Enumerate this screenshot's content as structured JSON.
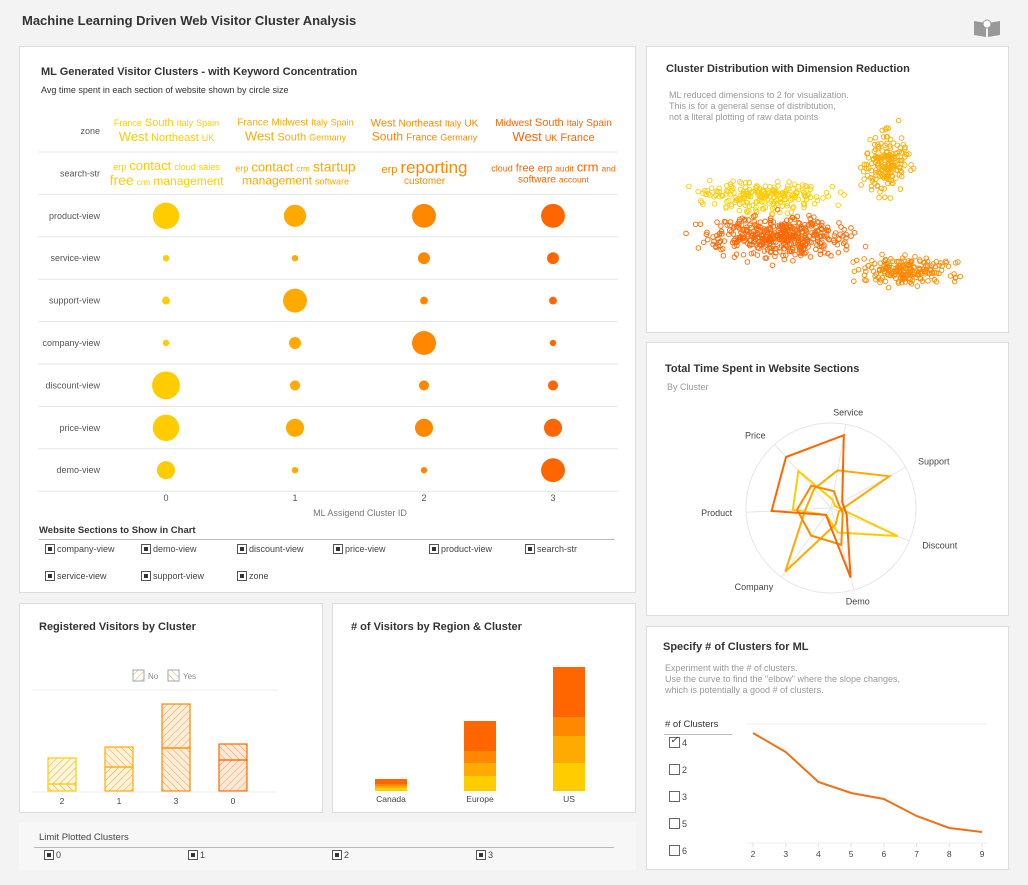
{
  "header": {
    "title": "Machine Learning Driven Web Visitor Cluster Analysis",
    "icon": "book-icon"
  },
  "colors": {
    "cluster_0": "#ffcc00",
    "cluster_1": "#ffaa00",
    "cluster_2": "#ff8800",
    "cluster_3": "#ff6600"
  },
  "main": {
    "title": "ML Generated Visitor Clusters - with Keyword Concentration",
    "subtitle": "Avg time spent in each section of website shown by circle size",
    "filter_title": "Website Sections to Show in Chart",
    "filters": [
      {
        "label": "company-view",
        "checked": true
      },
      {
        "label": "demo-view",
        "checked": true
      },
      {
        "label": "discount-view",
        "checked": true
      },
      {
        "label": "price-view",
        "checked": true
      },
      {
        "label": "product-view",
        "checked": true
      },
      {
        "label": "search-str",
        "checked": true
      },
      {
        "label": "service-view",
        "checked": true
      },
      {
        "label": "support-view",
        "checked": true
      },
      {
        "label": "zone",
        "checked": true
      }
    ]
  },
  "limit": {
    "title": "Limit Plotted Clusters",
    "options": [
      {
        "label": "0",
        "checked": true
      },
      {
        "label": "1",
        "checked": true
      },
      {
        "label": "2",
        "checked": true
      },
      {
        "label": "3",
        "checked": true
      }
    ]
  },
  "scatter": {
    "title": "Cluster Distribution with Dimension Reduction",
    "subtitle": "ML reduced dimensions to 2 for visualization.\nThis is for a general sense of distribtution,\nnot a literal plotting of raw data points"
  },
  "radar": {
    "title": "Total Time Spent in Website Sections",
    "subtitle": "By Cluster"
  },
  "registered": {
    "title": "Registered Visitors by Cluster"
  },
  "region": {
    "title": "# of Visitors by Region & Cluster"
  },
  "elbow": {
    "title": "Specify # of Clusters for ML",
    "subtitle": "Experiment with the # of clusters.\nUse the curve to find the \"elbow\" where the slope changes,\nwhich is potentially a good # of clusters.",
    "list_title": "# of Clusters",
    "options": [
      {
        "label": "4",
        "checked": true
      },
      {
        "label": "2",
        "checked": false
      },
      {
        "label": "3",
        "checked": false
      },
      {
        "label": "5",
        "checked": false
      },
      {
        "label": "6",
        "checked": false
      }
    ]
  },
  "chart_data": [
    {
      "id": "bubble",
      "type": "scatter",
      "xlabel": "ML Assigend Cluster ID",
      "categories": [
        "0",
        "1",
        "2",
        "3"
      ],
      "rows": [
        "zone",
        "search-str",
        "product-view",
        "service-view",
        "support-view",
        "company-view",
        "discount-view",
        "price-view",
        "demo-view"
      ],
      "sizes": {
        "product-view": [
          17,
          12,
          14,
          14
        ],
        "service-view": [
          1,
          1,
          3.5,
          3.5
        ],
        "support-view": [
          1.5,
          14,
          1.5,
          1.5
        ],
        "company-view": [
          1,
          3.5,
          14,
          1
        ],
        "discount-view": [
          19,
          2.5,
          2.5,
          2.5
        ],
        "price-view": [
          17,
          8,
          8,
          8
        ],
        "demo-view": [
          8,
          1,
          1,
          14
        ]
      },
      "word_clouds": {
        "zone": [
          [
            [
              "France",
              1
            ],
            [
              "South",
              2
            ],
            [
              "Italy",
              1
            ],
            [
              "Spain",
              1
            ],
            [
              "West",
              3
            ],
            [
              "Northeast",
              2
            ],
            [
              "UK",
              1
            ]
          ],
          [
            [
              "France",
              1.5
            ],
            [
              "Midwest",
              1.5
            ],
            [
              "Italy",
              1
            ],
            [
              "Spain",
              1
            ],
            [
              "West",
              3
            ],
            [
              "South",
              2
            ],
            [
              "Germany",
              1
            ]
          ],
          [
            [
              "West",
              2
            ],
            [
              "Northeast",
              1.5
            ],
            [
              "Italy",
              1
            ],
            [
              "UK",
              1.5
            ],
            [
              "South",
              2.5
            ],
            [
              "France",
              1.5
            ],
            [
              "Germany",
              1
            ]
          ],
          [
            [
              "Midwest",
              1.5
            ],
            [
              "South",
              2
            ],
            [
              "Italy",
              1
            ],
            [
              "Spain",
              1.5
            ],
            [
              "West",
              3
            ],
            [
              "UK",
              1
            ],
            [
              "France",
              2
            ]
          ]
        ],
        "search-str": [
          [
            [
              "erp",
              1
            ],
            [
              "contact",
              3
            ],
            [
              "cloud",
              1
            ],
            [
              "sales",
              1
            ],
            [
              "free",
              3.5
            ],
            [
              "crm",
              0.6
            ],
            [
              "management",
              2.5
            ]
          ],
          [
            [
              "erp",
              1
            ],
            [
              "contact",
              3
            ],
            [
              "crm",
              0.6
            ],
            [
              "startup",
              3.5
            ],
            [
              "management",
              2.5
            ],
            [
              "software",
              1
            ]
          ],
          [
            [
              "erp",
              2
            ],
            [
              "reporting",
              5
            ],
            [
              "customer",
              1.5
            ]
          ],
          [
            [
              "cloud",
              1
            ],
            [
              "free",
              2
            ],
            [
              "erp",
              1.5
            ],
            [
              "audit",
              0.8
            ],
            [
              "crm",
              3
            ],
            [
              "and",
              0.8
            ],
            [
              "software",
              1.5
            ],
            [
              "account",
              0.8
            ]
          ]
        ]
      }
    },
    {
      "id": "scatter",
      "type": "scatter",
      "xlim": [
        0,
        10
      ],
      "ylim": [
        0,
        10
      ],
      "clusters": [
        {
          "center": [
            2.5,
            6.2
          ],
          "spread": [
            1.6,
            0.6
          ],
          "n": 220
        },
        {
          "center": [
            6.4,
            7.8
          ],
          "spread": [
            0.6,
            1.3
          ],
          "n": 180
        },
        {
          "center": [
            3.0,
            4.3
          ],
          "spread": [
            1.9,
            0.9
          ],
          "n": 420
        },
        {
          "center": [
            7.0,
            2.7
          ],
          "spread": [
            1.3,
            0.6
          ],
          "n": 200
        }
      ]
    },
    {
      "id": "radar",
      "type": "radar",
      "title": "Total Time Spent in Website Sections",
      "subtitle": "By Cluster",
      "axes": [
        "Service",
        "Support",
        "Discount",
        "Demo",
        "Company",
        "Product",
        "Price"
      ],
      "series": [
        {
          "values": [
            10,
            5,
            85,
            30,
            10,
            45,
            58
          ]
        },
        {
          "values": [
            45,
            78,
            10,
            20,
            92,
            30,
            30
          ]
        },
        {
          "values": [
            20,
            10,
            15,
            45,
            40,
            40,
            35
          ]
        },
        {
          "values": [
            87,
            15,
            20,
            85,
            10,
            70,
            80
          ]
        }
      ]
    },
    {
      "id": "registered",
      "type": "bar",
      "categories": [
        "2",
        "1",
        "3",
        "0"
      ],
      "series": [
        {
          "name": "No",
          "values": [
            26,
            24,
            44,
            31
          ]
        },
        {
          "name": "Yes",
          "values": [
            7,
            20,
            43,
            16
          ]
        }
      ]
    },
    {
      "id": "region",
      "type": "bar",
      "categories": [
        "Canada",
        "Europe",
        "US"
      ],
      "series": [
        {
          "values": [
            3,
            15,
            28
          ]
        },
        {
          "values": [
            2,
            13,
            27
          ]
        },
        {
          "values": [
            2,
            12,
            19
          ]
        },
        {
          "values": [
            5,
            30,
            50
          ]
        }
      ]
    },
    {
      "id": "elbow",
      "type": "line",
      "x": [
        2,
        3,
        4,
        5,
        6,
        7,
        8,
        9
      ],
      "y": [
        108,
        89,
        59,
        48,
        42,
        25,
        13,
        9
      ],
      "xlim": [
        2,
        9
      ]
    }
  ]
}
